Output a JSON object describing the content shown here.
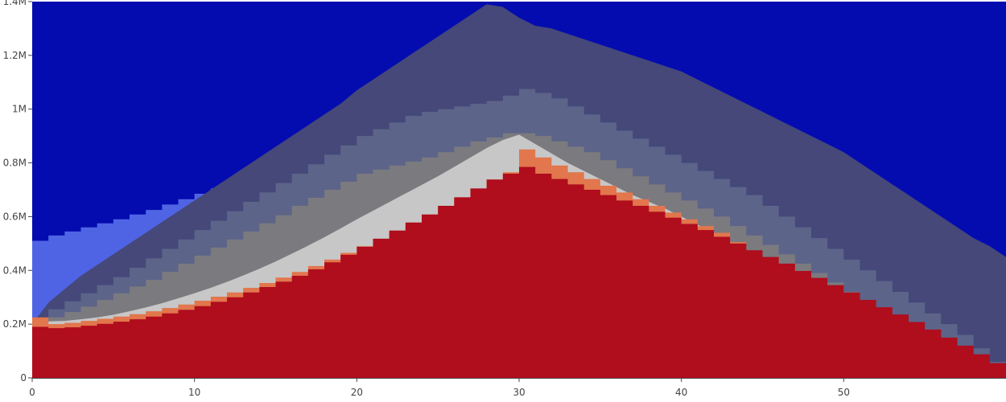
{
  "chart_data": {
    "type": "area",
    "title": "",
    "xlabel": "",
    "ylabel": "",
    "xlim": [
      0,
      60
    ],
    "ylim": [
      0,
      1400000
    ],
    "x_ticks": [
      0,
      10,
      20,
      30,
      40,
      50
    ],
    "y_ticks": [
      0,
      200000,
      400000,
      600000,
      800000,
      1000000,
      1200000,
      1400000
    ],
    "x_tick_labels": [
      "0",
      "10",
      "20",
      "30",
      "40",
      "50"
    ],
    "y_tick_labels": [
      "0",
      "0.2M",
      "0.4M",
      "0.6M",
      "0.8M",
      "1M",
      "1.2M",
      "1.4M"
    ],
    "background_color": "#050CAF",
    "grid": false,
    "legend": "none",
    "series": [
      {
        "step": true,
        "color": "#4F64E4",
        "x": [
          0,
          1,
          2,
          3,
          4,
          5,
          6,
          7,
          8,
          9,
          10,
          11,
          12,
          13,
          14,
          15,
          16,
          17,
          18,
          19,
          20,
          21,
          22,
          23,
          24,
          25,
          26,
          27,
          28,
          29,
          30,
          31,
          32,
          33,
          34,
          35,
          36,
          37,
          38,
          39,
          40,
          41,
          42,
          43,
          44,
          45,
          46,
          47,
          48,
          49,
          50,
          51,
          52,
          53,
          54,
          55,
          56,
          57,
          58,
          59,
          60
        ],
        "values": [
          510000,
          530000,
          545000,
          560000,
          575000,
          590000,
          608000,
          625000,
          645000,
          665000,
          685000,
          705000,
          722000,
          740000,
          760000,
          780000,
          800000,
          820000,
          845000,
          865000,
          890000,
          915000,
          945000,
          975000,
          1005000,
          1040000,
          1080000,
          1120000,
          1165000,
          1230000,
          1290000,
          1250000,
          1210000,
          1165000,
          1120000,
          1075000,
          1030000,
          980000,
          935000,
          890000,
          845000,
          800000,
          752000,
          705000,
          660000,
          615000,
          570000,
          522000,
          478000,
          432000,
          390000,
          345000,
          300000,
          260000,
          215000,
          172000,
          132000,
          95000,
          60000,
          30000,
          0
        ]
      },
      {
        "step": false,
        "color": "#454879",
        "x": [
          0,
          1,
          2,
          3,
          4,
          5,
          6,
          7,
          8,
          9,
          10,
          11,
          12,
          13,
          14,
          15,
          16,
          17,
          18,
          19,
          20,
          21,
          22,
          23,
          24,
          25,
          26,
          27,
          28,
          29,
          30,
          31,
          32,
          33,
          34,
          35,
          36,
          37,
          38,
          39,
          40,
          41,
          42,
          43,
          44,
          45,
          46,
          47,
          48,
          49,
          50,
          51,
          52,
          53,
          54,
          55,
          56,
          57,
          58,
          59,
          60
        ],
        "values": [
          200000,
          280000,
          330000,
          380000,
          420000,
          460000,
          500000,
          540000,
          580000,
          620000,
          660000,
          700000,
          740000,
          780000,
          820000,
          860000,
          900000,
          940000,
          980000,
          1020000,
          1070000,
          1110000,
          1150000,
          1190000,
          1230000,
          1270000,
          1310000,
          1350000,
          1390000,
          1380000,
          1340000,
          1310000,
          1300000,
          1280000,
          1260000,
          1240000,
          1220000,
          1200000,
          1180000,
          1160000,
          1140000,
          1110000,
          1080000,
          1050000,
          1020000,
          990000,
          960000,
          930000,
          900000,
          870000,
          840000,
          800000,
          760000,
          720000,
          680000,
          640000,
          600000,
          560000,
          520000,
          490000,
          450000
        ]
      },
      {
        "step": true,
        "color": "#5C6489",
        "x": [
          0,
          1,
          2,
          3,
          4,
          5,
          6,
          7,
          8,
          9,
          10,
          11,
          12,
          13,
          14,
          15,
          16,
          17,
          18,
          19,
          20,
          21,
          22,
          23,
          24,
          25,
          26,
          27,
          28,
          29,
          30,
          31,
          32,
          33,
          34,
          35,
          36,
          37,
          38,
          39,
          40,
          41,
          42,
          43,
          44,
          45,
          46,
          47,
          48,
          49,
          50,
          51,
          52,
          53,
          54,
          55,
          56,
          57,
          58,
          59,
          60
        ],
        "values": [
          220000,
          255000,
          285000,
          315000,
          345000,
          375000,
          410000,
          445000,
          480000,
          515000,
          550000,
          585000,
          620000,
          655000,
          690000,
          725000,
          760000,
          795000,
          830000,
          865000,
          900000,
          925000,
          950000,
          975000,
          990000,
          1000000,
          1010000,
          1020000,
          1030000,
          1050000,
          1075000,
          1060000,
          1040000,
          1010000,
          980000,
          950000,
          920000,
          890000,
          860000,
          830000,
          800000,
          770000,
          740000,
          710000,
          680000,
          640000,
          600000,
          560000,
          520000,
          480000,
          440000,
          400000,
          360000,
          320000,
          280000,
          240000,
          200000,
          160000,
          110000,
          60000,
          0
        ]
      },
      {
        "step": true,
        "color": "#7B7A7F",
        "x": [
          0,
          1,
          2,
          3,
          4,
          5,
          6,
          7,
          8,
          9,
          10,
          11,
          12,
          13,
          14,
          15,
          16,
          17,
          18,
          19,
          20,
          21,
          22,
          23,
          24,
          25,
          26,
          27,
          28,
          29,
          30,
          31,
          32,
          33,
          34,
          35,
          36,
          37,
          38,
          39,
          40,
          41,
          42,
          43,
          44,
          45,
          46,
          47,
          48,
          49,
          50,
          51,
          52,
          53,
          54,
          55,
          56,
          57,
          58,
          59,
          60
        ],
        "values": [
          205000,
          225000,
          245000,
          265000,
          290000,
          315000,
          340000,
          365000,
          395000,
          425000,
          455000,
          485000,
          515000,
          545000,
          575000,
          605000,
          640000,
          670000,
          700000,
          730000,
          760000,
          775000,
          790000,
          805000,
          820000,
          840000,
          860000,
          880000,
          895000,
          910000,
          910000,
          900000,
          880000,
          860000,
          840000,
          810000,
          780000,
          750000,
          720000,
          690000,
          660000,
          630000,
          600000,
          565000,
          530000,
          495000,
          460000,
          425000,
          390000,
          355000,
          320000,
          285000,
          250000,
          215000,
          180000,
          145000,
          110000,
          80000,
          50000,
          20000,
          0
        ]
      },
      {
        "step": false,
        "color": "#C7C7C7",
        "x": [
          0,
          1,
          2,
          3,
          4,
          5,
          6,
          7,
          8,
          9,
          10,
          11,
          12,
          13,
          14,
          15,
          16,
          17,
          18,
          19,
          20,
          21,
          22,
          23,
          24,
          25,
          26,
          27,
          28,
          29,
          30,
          31,
          32,
          33,
          34,
          35,
          36,
          37,
          38,
          39,
          40,
          41,
          42,
          43,
          44,
          45,
          46,
          47,
          48,
          49,
          50,
          51,
          52,
          53,
          54,
          55,
          56,
          57,
          58,
          59,
          60
        ],
        "values": [
          210000,
          210000,
          212000,
          218000,
          225000,
          235000,
          248000,
          262000,
          278000,
          296000,
          315000,
          335000,
          357000,
          381000,
          406000,
          433000,
          462000,
          492000,
          523000,
          556000,
          590000,
          622000,
          654000,
          686000,
          718000,
          750000,
          785000,
          820000,
          855000,
          885000,
          905000,
          870000,
          835000,
          800000,
          770000,
          740000,
          710000,
          680000,
          655000,
          630000,
          600000,
          570000,
          540000,
          505000,
          470000,
          440000,
          410000,
          380000,
          350000,
          320000,
          290000,
          260000,
          230000,
          200000,
          170000,
          140000,
          110000,
          80000,
          50000,
          20000,
          0
        ]
      },
      {
        "step": true,
        "color": "#E2764D",
        "x": [
          0,
          1,
          2,
          3,
          4,
          5,
          6,
          7,
          8,
          9,
          10,
          11,
          12,
          13,
          14,
          15,
          16,
          17,
          18,
          19,
          20,
          21,
          22,
          23,
          24,
          25,
          26,
          27,
          28,
          29,
          30,
          31,
          32,
          33,
          34,
          35,
          36,
          37,
          38,
          39,
          40,
          41,
          42,
          43,
          44,
          45,
          46,
          47,
          48,
          49,
          50,
          51,
          52,
          53,
          54,
          55,
          56,
          57,
          58,
          59,
          60
        ],
        "values": [
          225000,
          200000,
          205000,
          212000,
          220000,
          228000,
          237000,
          248000,
          260000,
          273000,
          287000,
          302000,
          318000,
          335000,
          353000,
          373000,
          394000,
          416000,
          440000,
          465000,
          490000,
          515000,
          540000,
          565000,
          595000,
          625000,
          660000,
          695000,
          730000,
          765000,
          850000,
          820000,
          790000,
          765000,
          740000,
          715000,
          690000,
          665000,
          640000,
          615000,
          590000,
          565000,
          540000,
          505000,
          470000,
          440000,
          410000,
          380000,
          350000,
          320000,
          290000,
          260000,
          230000,
          200000,
          170000,
          140000,
          110000,
          80000,
          50000,
          20000,
          0
        ]
      },
      {
        "step": true,
        "color": "#B00D1D",
        "x": [
          0,
          1,
          2,
          3,
          4,
          5,
          6,
          7,
          8,
          9,
          10,
          11,
          12,
          13,
          14,
          15,
          16,
          17,
          18,
          19,
          20,
          21,
          22,
          23,
          24,
          25,
          26,
          27,
          28,
          29,
          30,
          31,
          32,
          33,
          34,
          35,
          36,
          37,
          38,
          39,
          40,
          41,
          42,
          43,
          44,
          45,
          46,
          47,
          48,
          49,
          50,
          51,
          52,
          53,
          54,
          55,
          56,
          57,
          58,
          59,
          60
        ],
        "values": [
          190000,
          185000,
          188000,
          194000,
          201000,
          209000,
          218000,
          228000,
          240000,
          253000,
          267000,
          283000,
          300000,
          318000,
          338000,
          358000,
          380000,
          404000,
          430000,
          458000,
          488000,
          518000,
          548000,
          578000,
          608000,
          640000,
          672000,
          705000,
          738000,
          760000,
          785000,
          760000,
          740000,
          720000,
          700000,
          680000,
          660000,
          640000,
          618000,
          596000,
          573000,
          550000,
          525000,
          500000,
          475000,
          450000,
          425000,
          398000,
          372000,
          345000,
          318000,
          290000,
          263000,
          236000,
          208000,
          180000,
          150000,
          120000,
          88000,
          55000,
          20000
        ]
      }
    ]
  }
}
